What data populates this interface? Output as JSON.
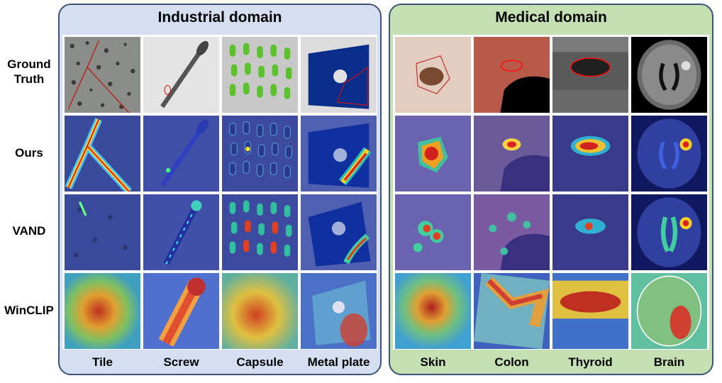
{
  "row_labels": [
    "Ground\nTruth",
    "Ours",
    "VAND",
    "WinCLIP"
  ],
  "panels": {
    "industrial": {
      "title": "Industrial domain",
      "columns": [
        "Tile",
        "Screw",
        "Capsule",
        "Metal plate"
      ]
    },
    "medical": {
      "title": "Medical domain",
      "columns": [
        "Skin",
        "Colon",
        "Thyroid",
        "Brain"
      ]
    }
  },
  "colors": {
    "industrial_panel": "#d6dff2",
    "medical_panel": "#c4e0b3",
    "panel_border": "#3b5478",
    "ground_truth_outline": "#e01010"
  }
}
